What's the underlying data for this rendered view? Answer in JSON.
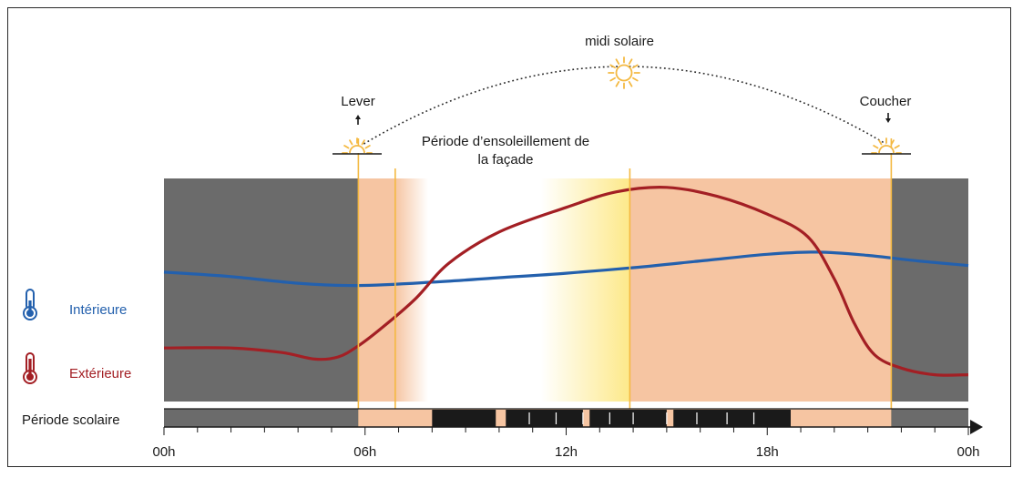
{
  "labels": {
    "midi": "midi solaire",
    "lever": "Lever",
    "coucher": "Coucher",
    "periode_ensoleillement_line1": "Période d’ensoleillement de",
    "periode_ensoleillement_line2": "la façade",
    "interieure": "Intérieure",
    "exterieure": "Extérieure",
    "periode_scolaire": "Période scolaire"
  },
  "axis": {
    "ticks": [
      "00h",
      "06h",
      "12h",
      "18h",
      "00h"
    ]
  },
  "colors": {
    "night": "#6b6b6b",
    "day_peach": "#f6c5a2",
    "sun_glow": "#fff6c2",
    "sun_line": "#f4b942",
    "interieure": "#2360ad",
    "exterieure": "#a31f24",
    "text": "#1a1a1a"
  },
  "icons": {
    "thermometer_interieure": "thermometer-cold-icon",
    "thermometer_exterieure": "thermometer-hot-icon",
    "sun": "sun-icon",
    "sunrise": "sunrise-icon",
    "sunset": "sunset-icon"
  },
  "chart_data": {
    "type": "line",
    "x_unit": "hour of day",
    "xlim": [
      0,
      24
    ],
    "events": {
      "lever_h": 5.8,
      "facade_start_h": 6.9,
      "midi_solaire_h": 13.9,
      "coucher_h": 21.7
    },
    "series": [
      {
        "name": "Intérieure",
        "x": [
          0,
          2,
          4,
          5.8,
          8,
          10,
          12,
          14,
          16,
          18,
          19.5,
          21,
          22.5,
          24
        ],
        "y": [
          0.58,
          0.56,
          0.53,
          0.52,
          0.535,
          0.555,
          0.575,
          0.6,
          0.63,
          0.66,
          0.67,
          0.655,
          0.63,
          0.61
        ]
      },
      {
        "name": "Extérieure",
        "x": [
          0,
          2,
          3.5,
          4.5,
          5.2,
          5.8,
          6.5,
          7.5,
          8.5,
          10,
          12,
          13.5,
          15,
          16.5,
          18,
          19.2,
          20,
          20.6,
          21.2,
          22,
          23,
          24
        ],
        "y": [
          0.24,
          0.24,
          0.22,
          0.19,
          0.2,
          0.25,
          0.33,
          0.46,
          0.62,
          0.76,
          0.87,
          0.94,
          0.96,
          0.92,
          0.84,
          0.74,
          0.55,
          0.35,
          0.21,
          0.15,
          0.12,
          0.12
        ]
      }
    ],
    "school_period": {
      "blocks": [
        [
          8.0,
          9.9
        ],
        [
          10.2,
          12.5
        ],
        [
          12.7,
          15.0
        ],
        [
          15.2,
          18.7
        ]
      ],
      "dividers": [
        10.9,
        11.7,
        12.5,
        13.3,
        14.0,
        15.0,
        15.9,
        16.8,
        17.6
      ]
    }
  }
}
